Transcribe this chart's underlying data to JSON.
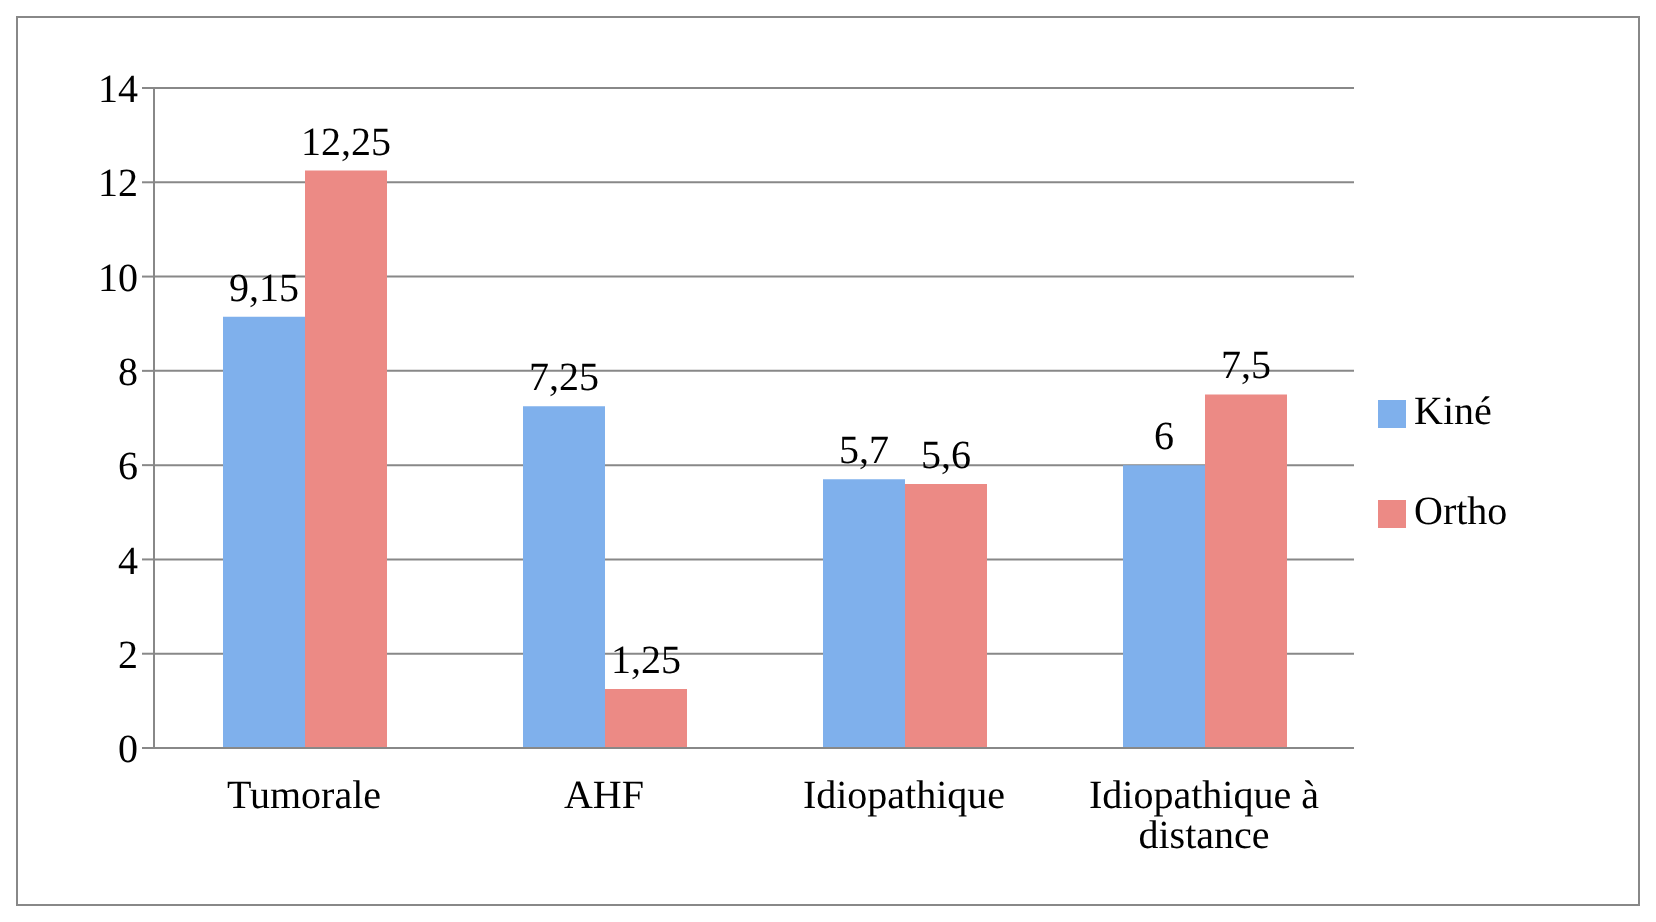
{
  "chart_data": {
    "type": "bar",
    "categories": [
      "Tumorale",
      "AHF",
      "Idiopathique",
      "Idiopathique à distance"
    ],
    "series": [
      {
        "name": "Kiné",
        "color": "#7fb0ec",
        "values": [
          9.15,
          7.25,
          5.7,
          6
        ],
        "value_labels": [
          "9,15",
          "7,25",
          "5,7",
          "6"
        ]
      },
      {
        "name": "Ortho",
        "color": "#ec8a85",
        "values": [
          12.25,
          1.25,
          5.6,
          7.5
        ],
        "value_labels": [
          "12,25",
          "1,25",
          "5,6",
          "7,5"
        ]
      }
    ],
    "ylim": [
      0,
      14
    ],
    "yticks": [
      0,
      2,
      4,
      6,
      8,
      10,
      12,
      14
    ],
    "grid": "y",
    "legend": "right"
  }
}
